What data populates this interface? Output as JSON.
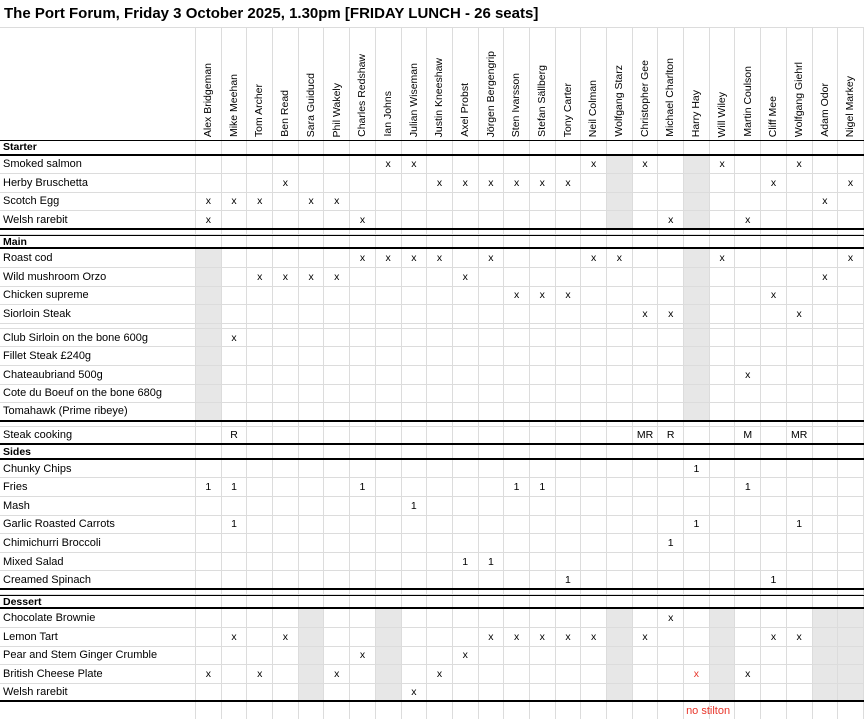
{
  "title": "The Port Forum, Friday 3 October 2025, 1.30pm [FRIDAY LUNCH - 26 seats]",
  "colors": {
    "red": "#e8352a",
    "shaded": "#e7e7e7",
    "grid": "#dcdcdc"
  },
  "columns": [
    "Alex Bridgeman",
    "Mike Meehan",
    "Tom Archer",
    "Ben Read",
    "Sara Guiducd",
    "Phil Wakely",
    "Charles Redshaw",
    "Ian Johns",
    "Julian Wiseman",
    "Justin Kneeshaw",
    "Axel Probst",
    "Jörgen Bergengrip",
    "Sten Ivarsson",
    "Stefan Sällberg",
    "Tony Carter",
    "Neil Colman",
    "Wolfgang Starz",
    "Christopher Gee",
    "Michael Charlton",
    "Harry Hay",
    "Will Wiley",
    "Martin Coulson",
    "Cliff Mee",
    "Wolfgang Giehrl",
    "Adam Odor",
    "Nigel Markey"
  ],
  "sections": [
    {
      "header": "Starter",
      "topline": false,
      "shaded_columns": [
        16,
        19
      ],
      "end_thick": true,
      "rows": [
        {
          "label": "Smoked salmon",
          "marks": {
            "7": "x",
            "8": "x",
            "15": "x",
            "17": "x",
            "20": "x",
            "23": "x"
          }
        },
        {
          "label": "Herby Bruschetta",
          "marks": {
            "3": "x",
            "9": "x",
            "10": "x",
            "11": "x",
            "12": "x",
            "13": "x",
            "14": "x",
            "22": "x",
            "25": "x"
          }
        },
        {
          "label": "Scotch Egg",
          "marks": {
            "0": "x",
            "1": "x",
            "2": "x",
            "4": "x",
            "5": "x",
            "24": "x"
          }
        },
        {
          "label": "Welsh rarebit",
          "marks": {
            "0": "x",
            "6": "x",
            "18": "x",
            "21": "x"
          }
        }
      ]
    },
    {
      "type": "spacer"
    },
    {
      "header": "Main",
      "topline": true,
      "shaded_columns": [
        0,
        19
      ],
      "end_thick": true,
      "rows": [
        {
          "label": "Roast cod",
          "marks": {
            "6": "x",
            "7": "x",
            "8": "x",
            "9": "x",
            "11": "x",
            "15": "x",
            "16": "x",
            "20": "x",
            "25": "x"
          }
        },
        {
          "label": "Wild mushroom Orzo",
          "marks": {
            "2": "x",
            "3": "x",
            "4": "x",
            "5": "x",
            "10": "x",
            "24": "x"
          }
        },
        {
          "label": "Chicken supreme",
          "marks": {
            "12": "x",
            "13": "x",
            "14": "x",
            "22": "x"
          }
        },
        {
          "label": "Siorloin Steak",
          "marks": {
            "17": "x",
            "18": "x",
            "23": "x"
          }
        },
        {
          "type": "gap"
        },
        {
          "label": "Club Sirloin on the bone 600g",
          "marks": {
            "1": "x"
          }
        },
        {
          "label": "Fillet Steak £240g",
          "marks": {}
        },
        {
          "label": "Chateaubriand 500g",
          "marks": {
            "21": "x"
          }
        },
        {
          "label": "Cote du Boeuf on the bone 680g",
          "marks": {}
        },
        {
          "label": "Tomahawk (Prime ribeye)",
          "marks": {}
        }
      ]
    },
    {
      "type": "spacer"
    },
    {
      "header": null,
      "end_thick": true,
      "rows": [
        {
          "label": "Steak cooking",
          "marks": {
            "1": "R",
            "17": "MR",
            "18": "R",
            "21": "M",
            "23": "MR"
          }
        }
      ]
    },
    {
      "header": "Sides",
      "topline": false,
      "end_thick": true,
      "rows": [
        {
          "label": "Chunky Chips",
          "marks": {
            "19": "1"
          }
        },
        {
          "label": "Fries",
          "marks": {
            "0": "1",
            "1": "1",
            "6": "1",
            "12": "1",
            "13": "1",
            "21": "1"
          }
        },
        {
          "label": "Mash",
          "marks": {
            "8": "1"
          }
        },
        {
          "label": "Garlic Roasted Carrots",
          "marks": {
            "1": "1",
            "19": "1",
            "23": "1"
          }
        },
        {
          "label": "Chimichurri Broccoli",
          "marks": {
            "18": "1"
          }
        },
        {
          "label": "Mixed Salad",
          "marks": {
            "10": "1",
            "11": "1"
          }
        },
        {
          "label": "Creamed Spinach",
          "marks": {
            "14": "1",
            "22": "1"
          }
        }
      ]
    },
    {
      "type": "spacer"
    },
    {
      "header": "Dessert",
      "topline": true,
      "shaded_columns": [
        4,
        7,
        16,
        20,
        24,
        25
      ],
      "end_thick": true,
      "rows": [
        {
          "label": "Chocolate Brownie",
          "marks": {
            "18": "x"
          }
        },
        {
          "label": "Lemon Tart",
          "marks": {
            "1": "x",
            "3": "x",
            "11": "x",
            "12": "x",
            "13": "x",
            "14": "x",
            "15": "x",
            "17": "x",
            "22": "x",
            "23": "x"
          }
        },
        {
          "label": "Pear and Stem Ginger Crumble",
          "marks": {
            "6": "x",
            "10": "x"
          }
        },
        {
          "label": "British Cheese Plate",
          "marks": {
            "0": "x",
            "2": "x",
            "5": "x",
            "9": "x",
            "21": "x"
          },
          "red_marks": {
            "19": "x"
          }
        },
        {
          "label": "Welsh rarebit",
          "marks": {
            "8": "x"
          }
        }
      ]
    }
  ],
  "footer": {
    "note_text": "no stilton",
    "note_col": 19
  }
}
